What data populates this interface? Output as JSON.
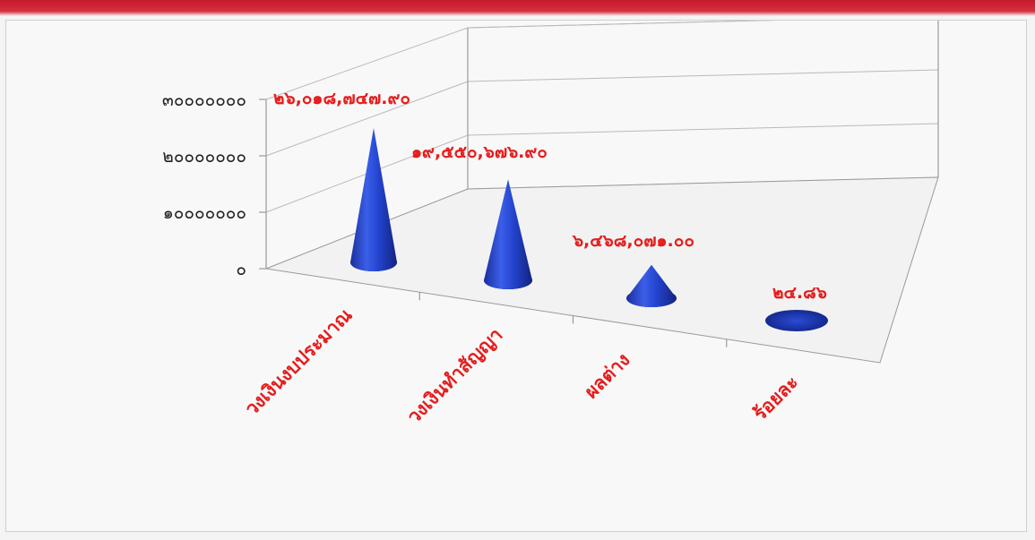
{
  "chart_data": {
    "type": "bar",
    "variant": "3d-cone",
    "title": "",
    "xlabel": "",
    "ylabel": "",
    "ylim": [
      0,
      30000000
    ],
    "grid": true,
    "legend": "none",
    "colors": {
      "cone": "#1f3fc4",
      "labels": "#e51d1d",
      "axis_text": "#222222",
      "top_strip": "#c51a2a"
    },
    "y_ticks": [
      {
        "value": 0,
        "label": "๐"
      },
      {
        "value": 10000000,
        "label": "๑๐๐๐๐๐๐๐"
      },
      {
        "value": 20000000,
        "label": "๒๐๐๐๐๐๐๐"
      },
      {
        "value": 30000000,
        "label": "๓๐๐๐๐๐๐๐"
      }
    ],
    "categories": [
      "วงเงินงบประมาณ",
      "วงเงินทำสัญญา",
      "ผลต่าง",
      "ร้อยละ"
    ],
    "values": [
      26018747.9,
      19550676.9,
      6468071.0,
      24.86
    ],
    "value_labels": [
      "๒๖,๐๑๘,๗๔๗.๙๐",
      "๑๙,๕๕๐,๖๗๖.๙๐",
      "๖,๔๖๘,๐๗๑.๐๐",
      "๒๔.๘๖"
    ]
  }
}
